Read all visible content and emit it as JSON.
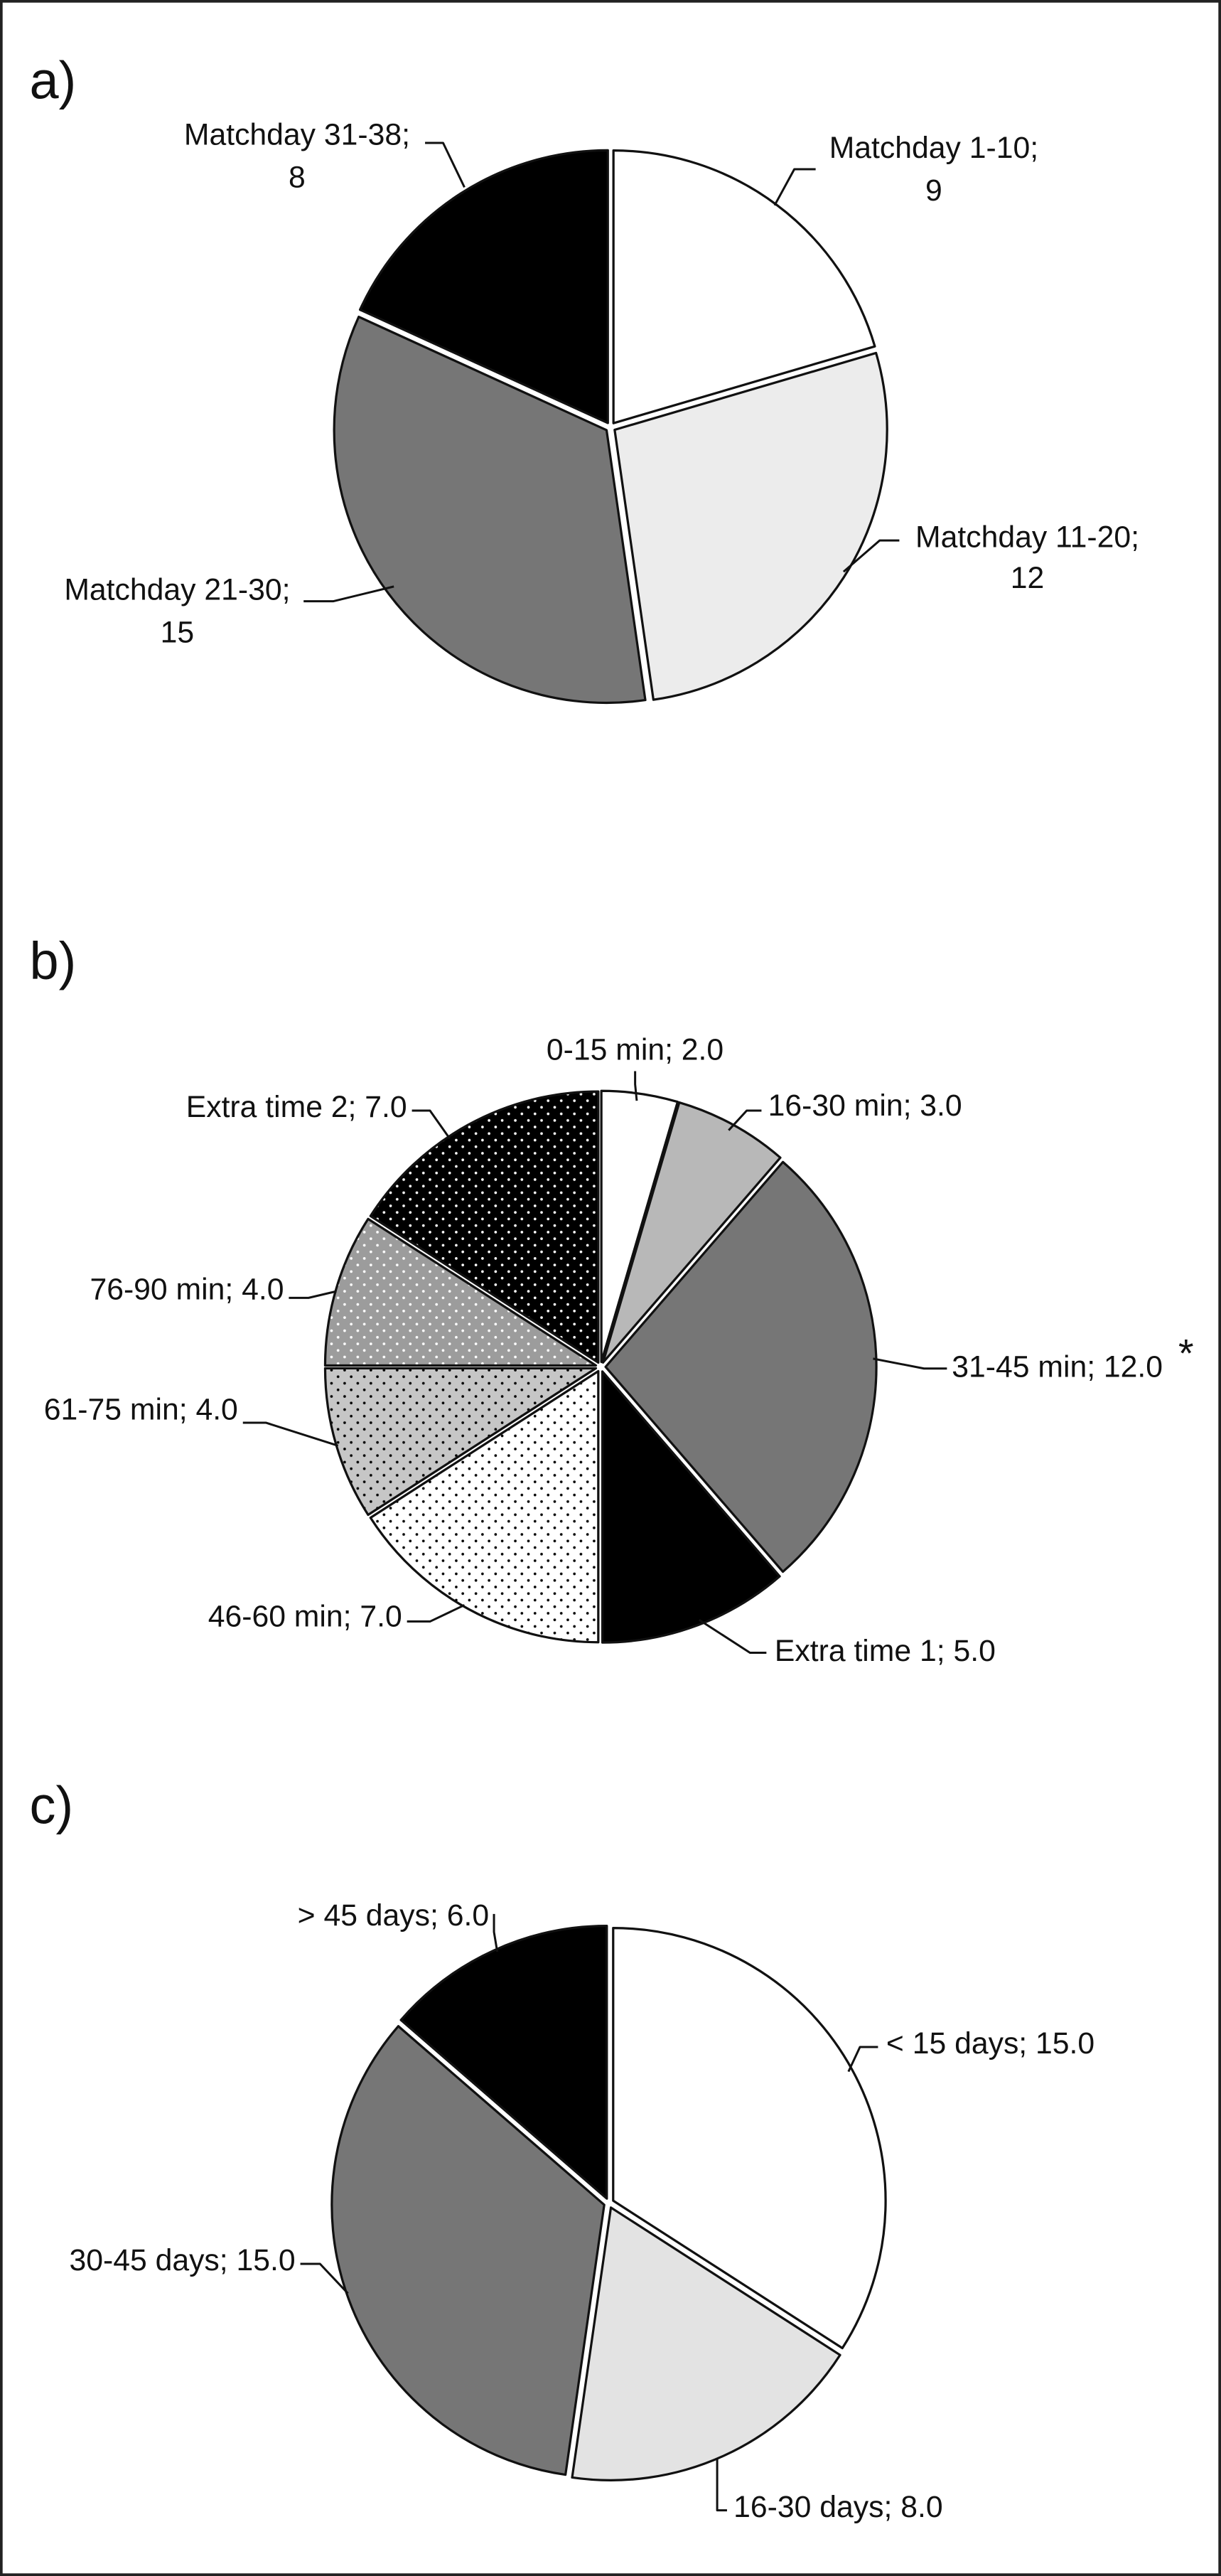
{
  "chart_data": [
    {
      "type": "pie",
      "panel_label": "a)",
      "slices": [
        {
          "label": "Matchday 1-10;",
          "value_label": "9",
          "value": 9,
          "fill": "#ffffff"
        },
        {
          "label": "Matchday 11-20;",
          "value_label": "12",
          "value": 12,
          "fill": "#ececec"
        },
        {
          "label": "Matchday 21-30;",
          "value_label": "15",
          "value": 15,
          "fill": "#767676"
        },
        {
          "label": "Matchday 31-38;",
          "value_label": "8",
          "value": 8,
          "fill": "#000000"
        }
      ]
    },
    {
      "type": "pie",
      "panel_label": "b)",
      "slices": [
        {
          "label": "0-15 min; 2.0",
          "value": 2.0,
          "fill": "#ffffff"
        },
        {
          "label": "16-30 min; 3.0",
          "value": 3.0,
          "fill": "#b8b8b8"
        },
        {
          "label": "31-45 min; 12.0",
          "value": 12.0,
          "fill": "#767676",
          "annotation": "*"
        },
        {
          "label": "Extra time 1; 5.0",
          "value": 5.0,
          "fill": "#000000"
        },
        {
          "label": "46-60 min; 7.0",
          "value": 7.0,
          "fill": "#ffffff",
          "dots": "#000000"
        },
        {
          "label": "61-75 min; 4.0",
          "value": 4.0,
          "fill": "#c6c6c6",
          "dots": "#000000"
        },
        {
          "label": "76-90 min; 4.0",
          "value": 4.0,
          "fill": "#9c9c9c",
          "dots": "#ffffff"
        },
        {
          "label": "Extra time 2; 7.0",
          "value": 7.0,
          "fill": "#000000",
          "dots": "#ffffff"
        }
      ]
    },
    {
      "type": "pie",
      "panel_label": "c)",
      "slices": [
        {
          "label": "< 15 days; 15.0",
          "value": 15.0,
          "fill": "#ffffff"
        },
        {
          "label": "16-30 days; 8.0",
          "value": 8.0,
          "fill": "#e3e3e3"
        },
        {
          "label": "30-45 days; 15.0",
          "value": 15.0,
          "fill": "#767676"
        },
        {
          "label": "> 45 days; 6.0",
          "value": 6.0,
          "fill": "#000000"
        }
      ]
    }
  ]
}
